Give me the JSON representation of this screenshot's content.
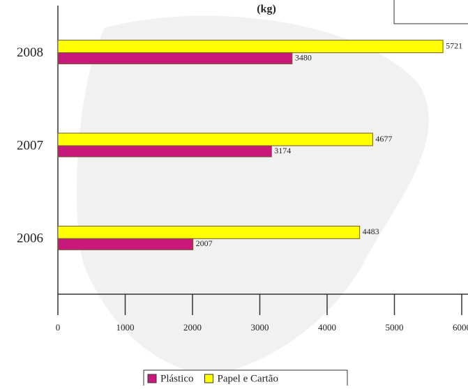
{
  "chart_data": {
    "type": "hbar",
    "title": "(kg)",
    "categories": [
      "2008",
      "2007",
      "2006"
    ],
    "series": [
      {
        "name": "Plástico",
        "color": "#c8197a",
        "values": [
          3480,
          3174,
          2007
        ]
      },
      {
        "name": "Papel e Cartão",
        "color": "#ffff00",
        "values": [
          5721,
          4677,
          4483
        ]
      }
    ],
    "xlim": [
      0,
      6000
    ],
    "xticks": [
      0,
      1000,
      2000,
      3000,
      4000,
      5000,
      6000
    ],
    "legend": "bottom"
  }
}
